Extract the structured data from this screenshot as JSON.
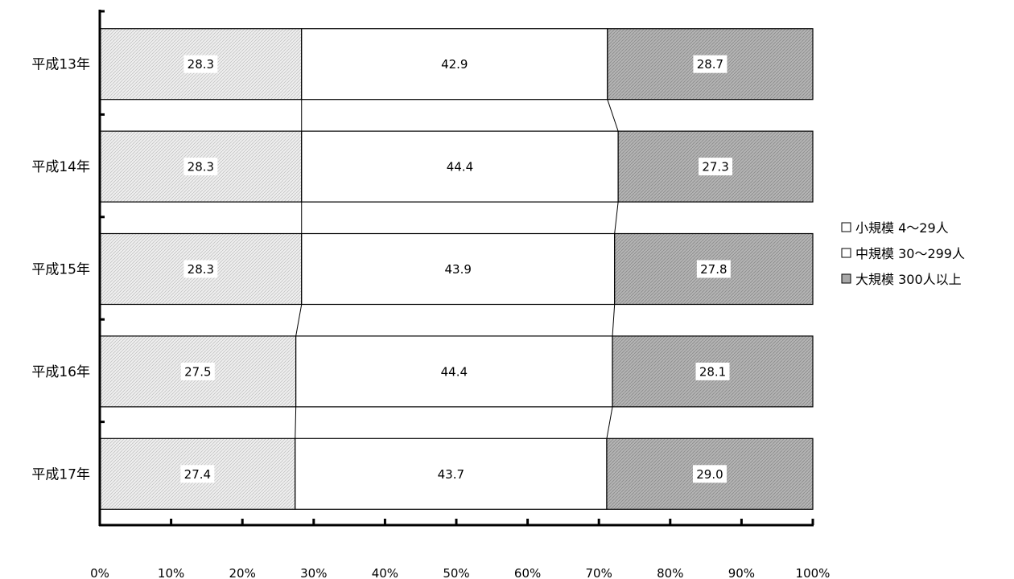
{
  "chart_data": {
    "type": "bar",
    "orientation": "horizontal",
    "stacked": "percent",
    "categories": [
      "平成13年",
      "平成14年",
      "平成15年",
      "平成16年",
      "平成17年"
    ],
    "series": [
      {
        "name": "小規模 4～29人",
        "values": [
          28.3,
          28.3,
          28.3,
          27.5,
          27.4
        ]
      },
      {
        "name": "中規模 30～299人",
        "values": [
          42.9,
          44.4,
          43.9,
          44.4,
          43.7
        ]
      },
      {
        "name": "大規模 300人以上",
        "values": [
          28.7,
          27.3,
          27.8,
          28.1,
          29.0
        ]
      }
    ],
    "x_ticks": [
      "0%",
      "10%",
      "20%",
      "30%",
      "40%",
      "50%",
      "60%",
      "70%",
      "80%",
      "90%",
      "100%"
    ],
    "xlim": [
      0,
      100
    ],
    "grid": false,
    "legend_position": "right",
    "series_lines": true
  },
  "colors": {
    "small": "#dcdcdc",
    "medium": "#ffffff",
    "large": "#a8a8a8",
    "outline": "#000000"
  }
}
